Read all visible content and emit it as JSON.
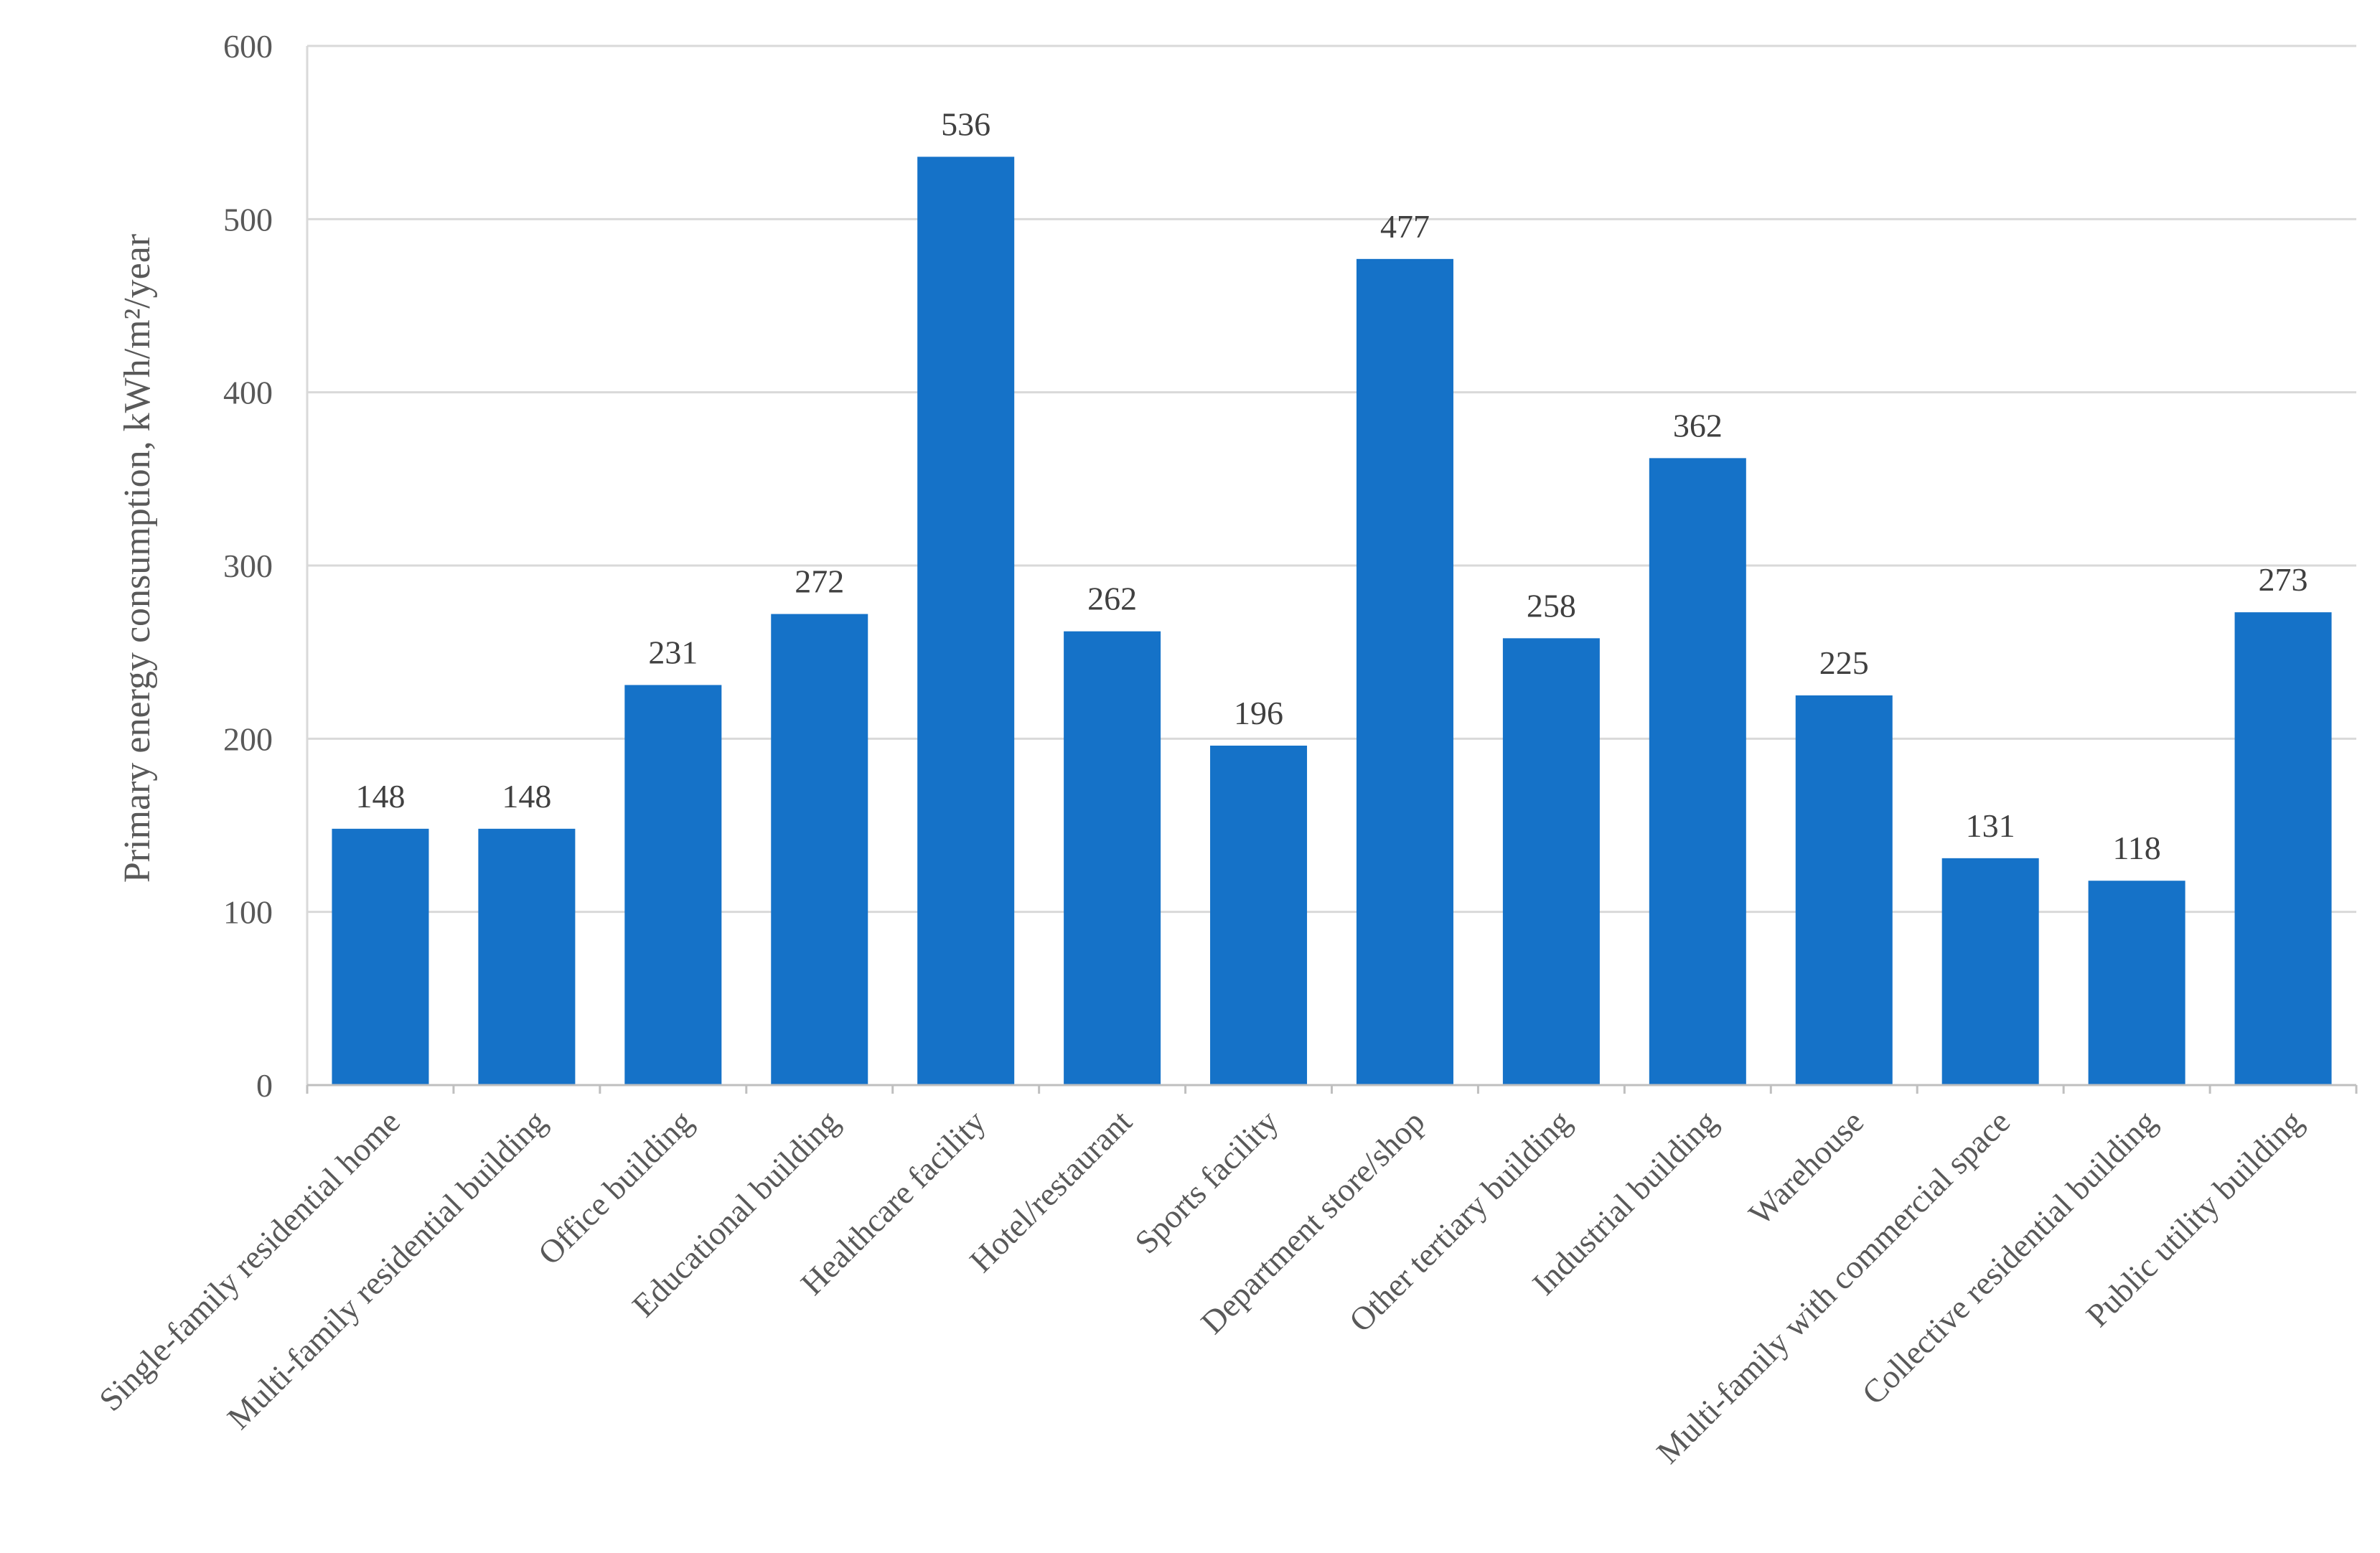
{
  "chart_data": {
    "type": "bar",
    "title": "",
    "xlabel": "",
    "ylabel": "Primary energy consumption, kWh/m²/year",
    "ylim": [
      0,
      600
    ],
    "yticks": [
      0,
      100,
      200,
      300,
      400,
      500,
      600
    ],
    "grid": true,
    "legend": "none",
    "bar_color": "#1572c8",
    "categories": [
      "Single-family residential home",
      "Multi-family residential building",
      "Office building",
      "Educational building",
      "Healthcare facility",
      "Hotel/restaurant",
      "Sports facility",
      "Department store/shop",
      "Other tertiary building",
      "Industrial building",
      "Warehouse",
      "Multi-family with commercial space",
      "Collective residential building",
      "Public utility building"
    ],
    "values": [
      148,
      148,
      231,
      272,
      536,
      262,
      196,
      477,
      258,
      362,
      225,
      131,
      118,
      273
    ]
  }
}
